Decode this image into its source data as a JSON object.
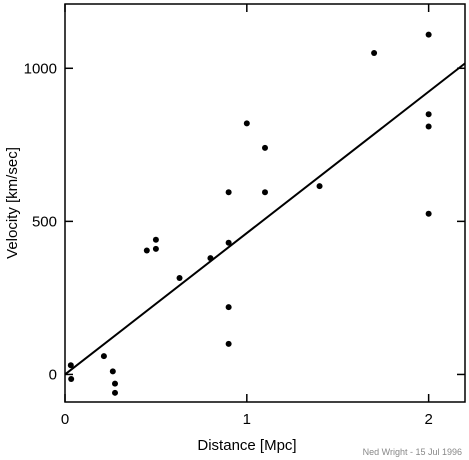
{
  "chart_data": {
    "type": "scatter",
    "xlabel": "Distance [Mpc]",
    "ylabel": "Velocity [km/sec]",
    "xlim": [
      0,
      2.2
    ],
    "ylim": [
      -90,
      1210
    ],
    "x_ticks": [
      0,
      1,
      2
    ],
    "y_ticks": [
      0,
      500,
      1000
    ],
    "grid": false,
    "credit": "Ned Wright - 15 Jul 1996",
    "points": [
      {
        "x": 0.032,
        "y": 30
      },
      {
        "x": 0.034,
        "y": -15
      },
      {
        "x": 0.214,
        "y": 60
      },
      {
        "x": 0.263,
        "y": 10
      },
      {
        "x": 0.275,
        "y": -30
      },
      {
        "x": 0.275,
        "y": -60
      },
      {
        "x": 0.45,
        "y": 405
      },
      {
        "x": 0.5,
        "y": 440
      },
      {
        "x": 0.5,
        "y": 410
      },
      {
        "x": 0.63,
        "y": 315
      },
      {
        "x": 0.8,
        "y": 380
      },
      {
        "x": 0.9,
        "y": 430
      },
      {
        "x": 0.9,
        "y": 595
      },
      {
        "x": 0.9,
        "y": 220
      },
      {
        "x": 0.9,
        "y": 100
      },
      {
        "x": 1.0,
        "y": 820
      },
      {
        "x": 1.1,
        "y": 740
      },
      {
        "x": 1.1,
        "y": 595
      },
      {
        "x": 1.4,
        "y": 615
      },
      {
        "x": 1.7,
        "y": 1050
      },
      {
        "x": 2.0,
        "y": 1110
      },
      {
        "x": 2.0,
        "y": 850
      },
      {
        "x": 2.0,
        "y": 810
      },
      {
        "x": 2.0,
        "y": 525
      }
    ],
    "fit_line": {
      "x": [
        0,
        2.2
      ],
      "y": [
        0,
        1016
      ]
    }
  }
}
